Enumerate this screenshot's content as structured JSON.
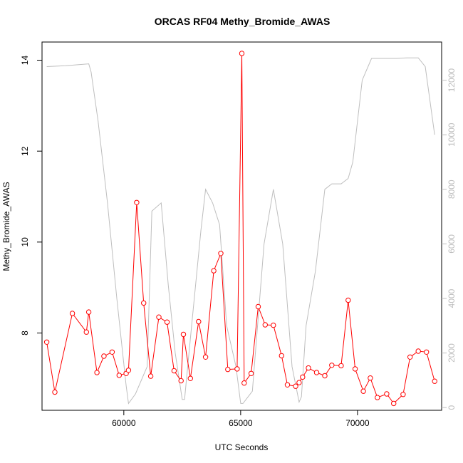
{
  "chart_data": {
    "type": "line",
    "title": "ORCAS RF04 Methy_Bromide_AWAS",
    "xlabel": "UTC Seconds",
    "ylabel": "Methy_Bromide_AWAS",
    "xlim": [
      56500,
      73600
    ],
    "ylim": [
      6.3,
      14.4
    ],
    "y2lim": [
      -100,
      13400
    ],
    "x_ticks": [
      60000,
      65000,
      70000
    ],
    "y_ticks": [
      8,
      10,
      12,
      14
    ],
    "y2_ticks": [
      0,
      2000,
      4000,
      6000,
      8000,
      10000,
      12000
    ],
    "grid": false,
    "colors": {
      "primary": "#ff0000",
      "secondary": "#bebebe"
    },
    "series": [
      {
        "axis": "left",
        "marker": "open-circle",
        "x": [
          56700,
          57050,
          57800,
          58400,
          58500,
          58850,
          59150,
          59500,
          59800,
          60100,
          60200,
          60550,
          60850,
          61150,
          61500,
          61850,
          62150,
          62450,
          62550,
          62850,
          63200,
          63500,
          63850,
          64150,
          64450,
          64850,
          65050,
          65150,
          65450,
          65750,
          66050,
          66400,
          66750,
          67000,
          67350,
          67500,
          67650,
          67900,
          68250,
          68600,
          68900,
          69300,
          69600,
          69900,
          70250,
          70550,
          70850,
          71250,
          71550,
          71950,
          72250,
          72600,
          72950,
          73300
        ],
        "values": [
          7.8,
          6.7,
          8.43,
          8.02,
          8.46,
          7.13,
          7.49,
          7.58,
          7.07,
          7.11,
          7.18,
          10.87,
          8.66,
          7.05,
          8.35,
          8.24,
          7.17,
          6.95,
          7.97,
          7.0,
          8.25,
          7.47,
          9.37,
          9.75,
          7.2,
          7.21,
          14.15,
          6.9,
          7.11,
          8.58,
          8.18,
          8.17,
          7.5,
          6.86,
          6.83,
          6.91,
          7.03,
          7.23,
          7.13,
          7.06,
          7.29,
          7.28,
          8.72,
          7.21,
          6.72,
          7.01,
          6.58,
          6.66,
          6.45,
          6.65,
          7.47,
          7.6,
          7.58,
          6.94
        ]
      },
      {
        "axis": "right",
        "x": [
          56700,
          57500,
          58500,
          58600,
          58900,
          59300,
          59700,
          60100,
          60200,
          60500,
          61000,
          61200,
          61600,
          61900,
          62200,
          62500,
          62600,
          62900,
          63300,
          63500,
          63800,
          64100,
          64400,
          64800,
          65000,
          65100,
          65500,
          66000,
          66400,
          66800,
          67200,
          67500,
          67600,
          67800,
          68200,
          68600,
          68900,
          69300,
          69600,
          69800,
          70200,
          70600,
          71200,
          71700,
          72100,
          72600,
          72900,
          73300
        ],
        "values": [
          12500,
          12530,
          12600,
          12300,
          10500,
          7500,
          4000,
          800,
          150,
          500,
          1500,
          7200,
          7500,
          4500,
          2000,
          300,
          300,
          3000,
          6500,
          8000,
          7500,
          6700,
          3000,
          1500,
          150,
          150,
          600,
          6000,
          8000,
          6000,
          1500,
          200,
          400,
          3000,
          5000,
          8000,
          8200,
          8200,
          8400,
          9000,
          12000,
          12800,
          12800,
          12800,
          12820,
          12820,
          12500,
          10000
        ]
      }
    ]
  }
}
